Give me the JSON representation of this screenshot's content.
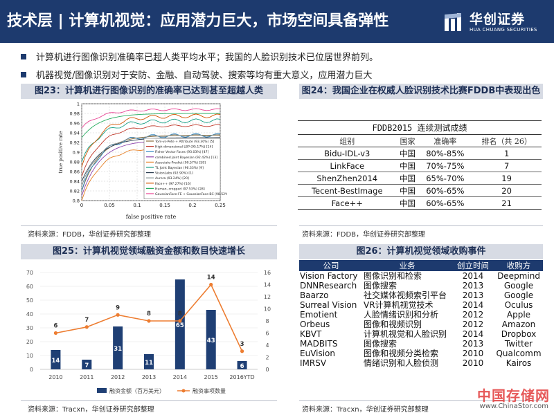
{
  "header": {
    "title": "技术层 | 计算机视觉：应用潜力巨大，市场空间具备弹性",
    "logo_cn": "华创证券",
    "logo_en": "HUA CHUANG SECURITIES"
  },
  "bullets": [
    "计算机进行图像识别准确率已超人类平均水平；我国的人脸识别技术已位居世界前列。",
    "机器视觉/图像识别对于安防、金融、自动驾驶、搜索等均有重大意义，应用潜力巨大"
  ],
  "fig23": {
    "title": "图23：计算机进行图像识别的准确率已达到甚至超越人类",
    "source": "资料来源：FDDB，华创证券研究部整理",
    "chart_data": {
      "type": "line",
      "xlabel": "false positive rate",
      "ylabel": "true positive rate",
      "xticks": [
        "0",
        "0.05",
        "0.1",
        "0.15",
        "0.2",
        "0.25"
      ],
      "yticks": [
        "0.8",
        "0.82",
        "0.84",
        "0.86",
        "0.88",
        "0.9",
        "0.92",
        "0.94",
        "0.96",
        "0.98",
        "1"
      ],
      "xlim": [
        0,
        0.25
      ],
      "ylim": [
        0.8,
        1.0
      ],
      "legend": [
        "Tom-vs-Pete + Attribute (93.30%) [5]",
        "High dimensional LBP (95.17%) [14]",
        "Fisher Vector Faces (93.03%) [47]",
        "combined Joint Bayesian (92.42%) [13]",
        "Associate-Predict (90.57%) [59]",
        "TL Joint Bayesian (96.33%) [9]",
        "VisionLabs (92.90%) [1]",
        "Aurora (93.24%) [20]",
        "Face++ (97.27%) [16]",
        "Human, cropped (97.53%) [28]",
        "GaussianFace-FE + GaussianFace-BC (98.52%)"
      ],
      "legend_position": "lower-right"
    }
  },
  "fig24": {
    "title": "图24：我国企业在权威人脸识别技术比赛FDDB中表现出色",
    "source": "资料来源：FDDB，华创证券研究部整理",
    "table_caption": "FDDB2015 连续测试成绩",
    "columns": [
      "组别",
      "国家",
      "准确率",
      "排名（共 26）"
    ],
    "rows": [
      [
        "Bidu-IDL-v3",
        "中国",
        "80%-85%",
        "1"
      ],
      [
        "LinkFace",
        "中国",
        "70%-75%",
        "7"
      ],
      [
        "ShenZhen2014",
        "中国",
        "65%-70%",
        "19"
      ],
      [
        "Tecent-BestImage",
        "中国",
        "60%-65%",
        "20"
      ],
      [
        "Face++",
        "中国",
        "60%-65%",
        "21"
      ]
    ]
  },
  "fig25": {
    "title": "图25：计算机视觉领域融资金额和数目快速增长",
    "source": "资料来源：Tracxn，华创证券研究部整理",
    "chart_data": {
      "type": "bar",
      "categories": [
        "2010",
        "2011",
        "2012",
        "2013",
        "2014",
        "2015",
        "2016YTD"
      ],
      "series": [
        {
          "name": "融资金额（百万美元）",
          "type": "bar",
          "axis": "left",
          "values": [
            14,
            7,
            31,
            11,
            65,
            43,
            6
          ]
        },
        {
          "name": "融资事项数量",
          "type": "line",
          "axis": "right",
          "values": [
            6,
            7,
            9,
            8,
            8,
            14,
            3
          ]
        }
      ],
      "ylim_left": [
        0,
        70
      ],
      "yticks_left": [
        "0",
        "10",
        "20",
        "30",
        "40",
        "50",
        "60",
        "70"
      ],
      "ylim_right": [
        0,
        16
      ],
      "yticks_right": [
        "0",
        "2",
        "4",
        "6",
        "8",
        "10",
        "12",
        "14",
        "16"
      ],
      "legend_position": "bottom",
      "colors": {
        "bar": "#1f3f74",
        "line": "#ed7d31"
      }
    }
  },
  "fig26": {
    "title": "图26：计算机视觉领域收购事件",
    "source": "资料来源：Tracxn，华创证券研究部整理",
    "columns": [
      "公司",
      "业务",
      "创立时间",
      "收购方"
    ],
    "rows": [
      [
        "Vision Factory",
        "图像识别和检索",
        "2014",
        "Deepmind"
      ],
      [
        "DNNResearch",
        "图像搜索",
        "2013",
        "Google"
      ],
      [
        "Baarzo",
        "社交媒体视频索引平台",
        "2013",
        "Google"
      ],
      [
        "Surreal Vision",
        "VR计算机视觉技术",
        "2014",
        "Oculus"
      ],
      [
        "Emotient",
        "人脸情绪识别和分析",
        "2012",
        "Apple"
      ],
      [
        "Orbeus",
        "图像和视频识别",
        "2012",
        "Amazon"
      ],
      [
        "KBVT",
        "计算机视觉和人脸识别",
        "2014",
        "Dropbox"
      ],
      [
        "MADBITS",
        "图像搜索",
        "2013",
        "Twitter"
      ],
      [
        "EuVision",
        "图像和视频分类检索",
        "2010",
        "Qualcomm"
      ],
      [
        "IMRSV",
        "情绪识别和人脸侦测",
        "2010",
        "Kairos"
      ]
    ]
  },
  "watermark": {
    "cn": "中国存储网",
    "en": "www.ChinaStor.com"
  },
  "colors": {
    "brand": "#1d3a6e",
    "panel": "#d7dbe4",
    "orange": "#ed7d31"
  }
}
